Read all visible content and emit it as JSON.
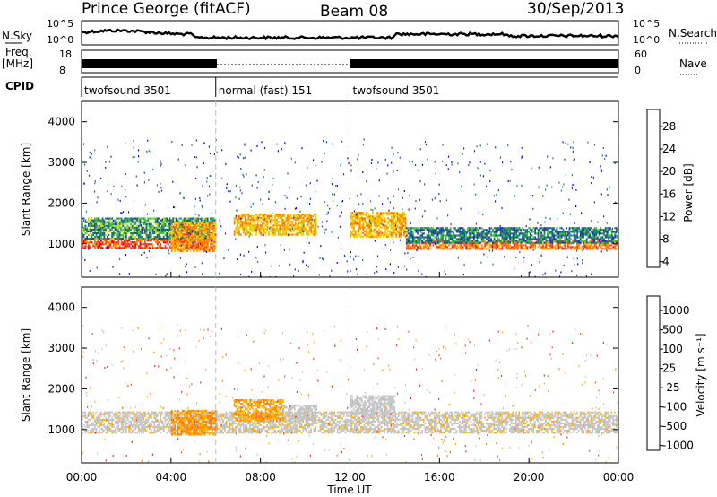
{
  "header": {
    "station": "Prince George (fitACF)",
    "beam": "Beam 08",
    "date": "30/Sep/2013"
  },
  "top_panels": {
    "nsky_label": "N.Sky",
    "nsearch_label": "N.Search",
    "freq_label_line1": "Freq.",
    "freq_label_line2": "[MHz]",
    "nave_label": "Nave",
    "cpid_label": "CPID",
    "nsky_ticks": [
      "10^5",
      "10^0"
    ],
    "nsearch_ticks": [
      "10^5",
      "10^0"
    ],
    "freq_ticks": [
      "18",
      "8"
    ],
    "nave_ticks": [
      "60",
      "0"
    ],
    "cpid_modes": [
      {
        "label": "twofsound 3501",
        "start_hour": 0,
        "end_hour": 6.0
      },
      {
        "label": "normal (fast) 151",
        "start_hour": 6.0,
        "end_hour": 12.0
      },
      {
        "label": "twofsound 3501",
        "start_hour": 12.0,
        "end_hour": 24.0
      }
    ]
  },
  "power_panel": {
    "ylabel": "Slant Range [km]",
    "yticks": [
      "4000",
      "3000",
      "2000",
      "1000"
    ],
    "colorbar_title": "Power [dB]",
    "colorbar_ticks": [
      "28",
      "24",
      "20",
      "16",
      "12",
      "8",
      "4"
    ],
    "colors": [
      "#e00000",
      "#ff3030",
      "#ff7000",
      "#ffa500",
      "#ffd000",
      "#c0e000",
      "#40c040",
      "#208060",
      "#205090",
      "#1030c0",
      "#0000f0"
    ]
  },
  "velocity_panel": {
    "ylabel": "Slant Range [km]",
    "yticks": [
      "4000",
      "3000",
      "2000",
      "1000"
    ],
    "colorbar_title": "Velocity [m s⁻¹]",
    "colorbar_ticks": [
      "1000",
      "500",
      "100",
      "25",
      "-25",
      "-100",
      "-500",
      "-1000"
    ],
    "colors": [
      "#1a3cb0",
      "#3060c0",
      "#2a8a6a",
      "#40b040",
      "#c0c0c0",
      "#c8c8c8",
      "#ffb000",
      "#ff8000",
      "#ff5010",
      "#ff2020",
      "#e00000"
    ]
  },
  "x_axis": {
    "label": "Time UT",
    "ticks": [
      "00:00",
      "04:00",
      "08:00",
      "12:00",
      "16:00",
      "20:00",
      "00:00"
    ]
  },
  "chart_data": [
    {
      "type": "heatmap",
      "title": "Power",
      "xlabel": "Time UT",
      "ylabel": "Slant Range [km]",
      "xlim_hours": [
        0,
        24
      ],
      "ylim_km": [
        180,
        4500
      ],
      "colorbar_label": "Power [dB]",
      "colorbar_range": [
        0,
        30
      ],
      "echo_bands": [
        {
          "start_hour": 0.0,
          "end_hour": 6.0,
          "range_center_km": 1050,
          "range_width_km": 250,
          "power_db": 26
        },
        {
          "start_hour": 0.0,
          "end_hour": 6.0,
          "range_center_km": 1400,
          "range_width_km": 500,
          "power_db": 10
        },
        {
          "start_hour": 4.0,
          "end_hour": 6.0,
          "range_center_km": 1200,
          "range_width_km": 700,
          "power_db": 22
        },
        {
          "start_hour": 6.8,
          "end_hour": 10.5,
          "range_center_km": 1500,
          "range_width_km": 500,
          "power_db": 20
        },
        {
          "start_hour": 12.0,
          "end_hour": 14.5,
          "range_center_km": 1500,
          "range_width_km": 600,
          "power_db": 20
        },
        {
          "start_hour": 14.5,
          "end_hour": 24.0,
          "range_center_km": 1000,
          "range_width_km": 200,
          "power_db": 24
        },
        {
          "start_hour": 14.5,
          "end_hour": 24.0,
          "range_center_km": 1250,
          "range_width_km": 400,
          "power_db": 8
        }
      ]
    },
    {
      "type": "heatmap",
      "title": "Velocity",
      "xlabel": "Time UT",
      "ylabel": "Slant Range [km]",
      "xlim_hours": [
        0,
        24
      ],
      "ylim_km": [
        180,
        4500
      ],
      "colorbar_label": "Velocity [m s⁻¹]",
      "colorbar_range": [
        -1000,
        1000
      ],
      "echo_bands": [
        {
          "start_hour": 0.0,
          "end_hour": 24.0,
          "range_center_km": 1200,
          "range_width_km": 500,
          "velocity_ms": 0
        },
        {
          "start_hour": 4.0,
          "end_hour": 6.0,
          "range_center_km": 1200,
          "range_width_km": 600,
          "velocity_ms": -300
        },
        {
          "start_hour": 6.8,
          "end_hour": 9.0,
          "range_center_km": 1500,
          "range_width_km": 500,
          "velocity_ms": -250
        },
        {
          "start_hour": 9.0,
          "end_hour": 10.5,
          "range_center_km": 1450,
          "range_width_km": 400,
          "velocity_ms": 150
        },
        {
          "start_hour": 12.0,
          "end_hour": 14.0,
          "range_center_km": 1600,
          "range_width_km": 500,
          "velocity_ms": 100
        }
      ]
    }
  ]
}
